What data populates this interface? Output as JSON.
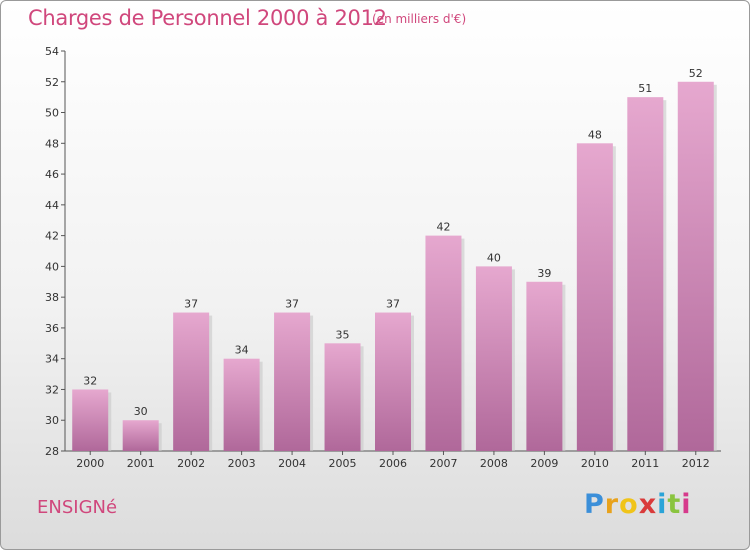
{
  "header": {
    "title": "Charges de Personnel 2000 à 2012",
    "subtitle": "(en milliers d'€)"
  },
  "footer": {
    "commune": "ENSIGNé",
    "logo_letters": [
      "P",
      "r",
      "o",
      "x",
      "i",
      "t",
      "i"
    ],
    "logo_colors": [
      "#3b8fd9",
      "#e8a21c",
      "#f0c419",
      "#d93a3a",
      "#2aa4d8",
      "#8ac43f",
      "#d63a8c"
    ]
  },
  "colors": {
    "bar_top": "#e6a8cf",
    "bar_bottom": "#b0689a",
    "title": "#d0477c"
  },
  "chart_data": {
    "type": "bar",
    "title": "Charges de Personnel 2000 à 2012",
    "subtitle": "(en milliers d'€)",
    "xlabel": "",
    "ylabel": "",
    "categories": [
      "2000",
      "2001",
      "2002",
      "2003",
      "2004",
      "2005",
      "2006",
      "2007",
      "2008",
      "2009",
      "2010",
      "2011",
      "2012"
    ],
    "values": [
      32,
      30,
      37,
      34,
      37,
      35,
      37,
      42,
      40,
      39,
      48,
      51,
      52
    ],
    "ylim": [
      28,
      54
    ],
    "yticks": [
      28,
      30,
      32,
      34,
      36,
      38,
      40,
      42,
      44,
      46,
      48,
      50,
      52,
      54
    ],
    "grid": false,
    "legend": "none"
  }
}
